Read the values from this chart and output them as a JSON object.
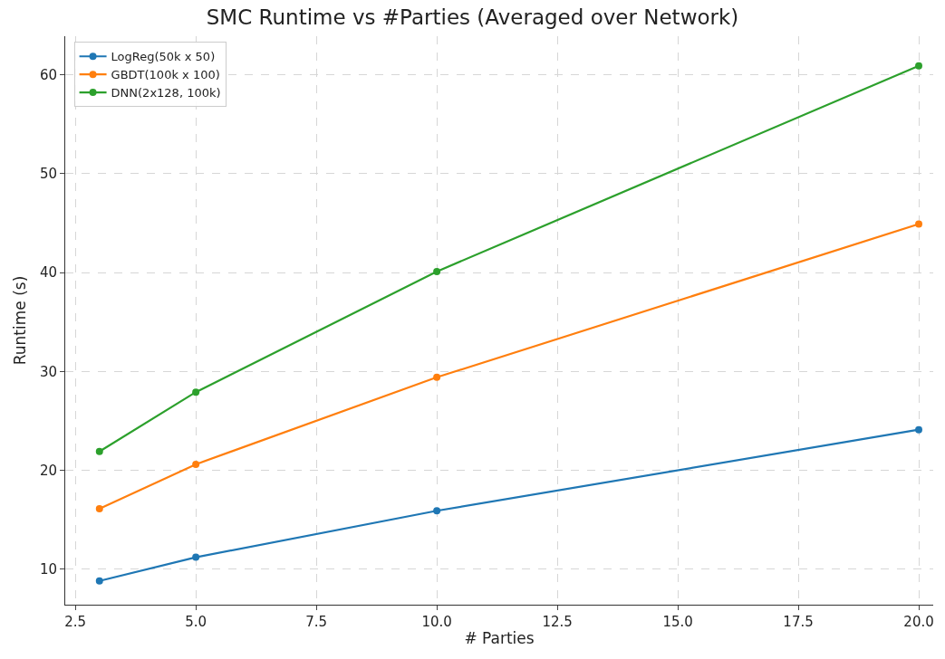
{
  "chart_data": {
    "type": "line",
    "title": "SMC Runtime vs #Parties (Averaged over Network)",
    "xlabel": "# Parties",
    "ylabel": "Runtime (s)",
    "x": [
      3,
      5,
      10,
      20
    ],
    "series": [
      {
        "name": "LogReg(50k x 50)",
        "color": "#1f77b4",
        "values": [
          8.8,
          11.2,
          15.9,
          24.1
        ]
      },
      {
        "name": "GBDT(100k x 100)",
        "color": "#ff7f0e",
        "values": [
          16.1,
          20.6,
          29.4,
          44.9
        ]
      },
      {
        "name": "DNN(2x128, 100k)",
        "color": "#2ca02c",
        "values": [
          21.9,
          27.9,
          40.1,
          60.9
        ]
      }
    ],
    "xlim": [
      2.29,
      20.3
    ],
    "ylim": [
      6.4,
      63.9
    ],
    "xticks": [
      {
        "value": 2.5,
        "label": "2.5"
      },
      {
        "value": 5,
        "label": "5.0"
      },
      {
        "value": 7.5,
        "label": "7.5"
      },
      {
        "value": 10,
        "label": "10.0"
      },
      {
        "value": 12.5,
        "label": "12.5"
      },
      {
        "value": 15,
        "label": "15.0"
      },
      {
        "value": 17.5,
        "label": "17.5"
      },
      {
        "value": 20,
        "label": "20.0"
      }
    ],
    "yticks": [
      10,
      20,
      30,
      40,
      50,
      60
    ],
    "grid": true,
    "legend": "top left",
    "marker": "circle",
    "line_style": "solid"
  }
}
